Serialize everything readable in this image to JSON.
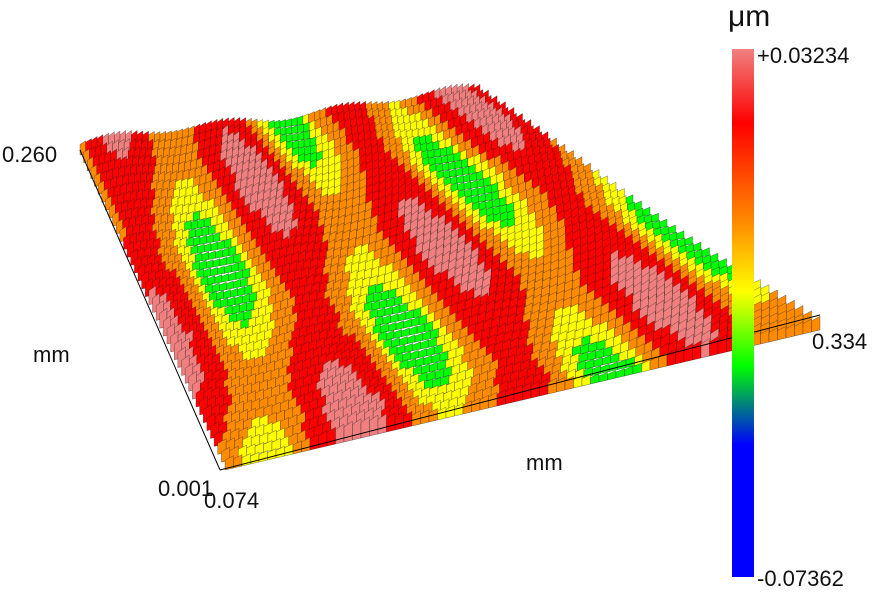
{
  "chart_data": {
    "type": "surface",
    "colorbar": {
      "unit": "μm",
      "max_label": "+0.03234",
      "min_label": "-0.07362",
      "max": 0.03234,
      "min": -0.07362,
      "colors": [
        "#f08080",
        "#ff0000",
        "#ff8c00",
        "#ffff00",
        "#00ff00",
        "#0000ff"
      ]
    },
    "axes": {
      "y_axis": {
        "unit": "mm",
        "max_label": "0.260",
        "max": 0.26
      },
      "x_axis": {
        "unit": "mm",
        "max_label": "0.334",
        "max": 0.334
      },
      "origin_labels": [
        "0.001",
        "0.074"
      ]
    },
    "grid": false,
    "legend": "colorbar-right"
  }
}
